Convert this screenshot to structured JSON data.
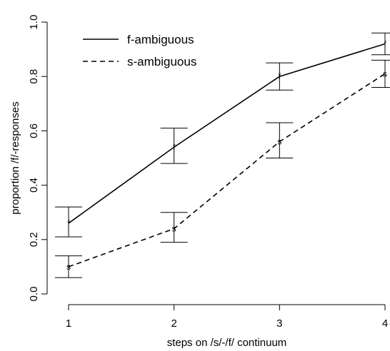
{
  "chart_data": {
    "type": "line",
    "xlabel": "steps on /s/-/f/ continuum",
    "ylabel": "proportion /f/-responses",
    "x": [
      1,
      2,
      3,
      4
    ],
    "xlim": [
      1,
      4
    ],
    "ylim": [
      0.0,
      1.0
    ],
    "xticks": [
      "1",
      "2",
      "3",
      "4"
    ],
    "yticks": [
      "0.0",
      "0.2",
      "0.4",
      "0.6",
      "0.8",
      "1.0"
    ],
    "legend_position": "top-left",
    "grid": false,
    "series": [
      {
        "name": "f-ambiguous",
        "marker": "f",
        "linestyle": "solid",
        "values": [
          0.26,
          0.54,
          0.8,
          0.92
        ],
        "error_low": [
          0.21,
          0.48,
          0.75,
          0.88
        ],
        "error_high": [
          0.32,
          0.61,
          0.85,
          0.96
        ]
      },
      {
        "name": "s-ambiguous",
        "marker": "s",
        "linestyle": "dashed",
        "values": [
          0.1,
          0.24,
          0.56,
          0.81
        ],
        "error_low": [
          0.06,
          0.19,
          0.5,
          0.76
        ],
        "error_high": [
          0.14,
          0.3,
          0.63,
          0.86
        ]
      }
    ]
  }
}
